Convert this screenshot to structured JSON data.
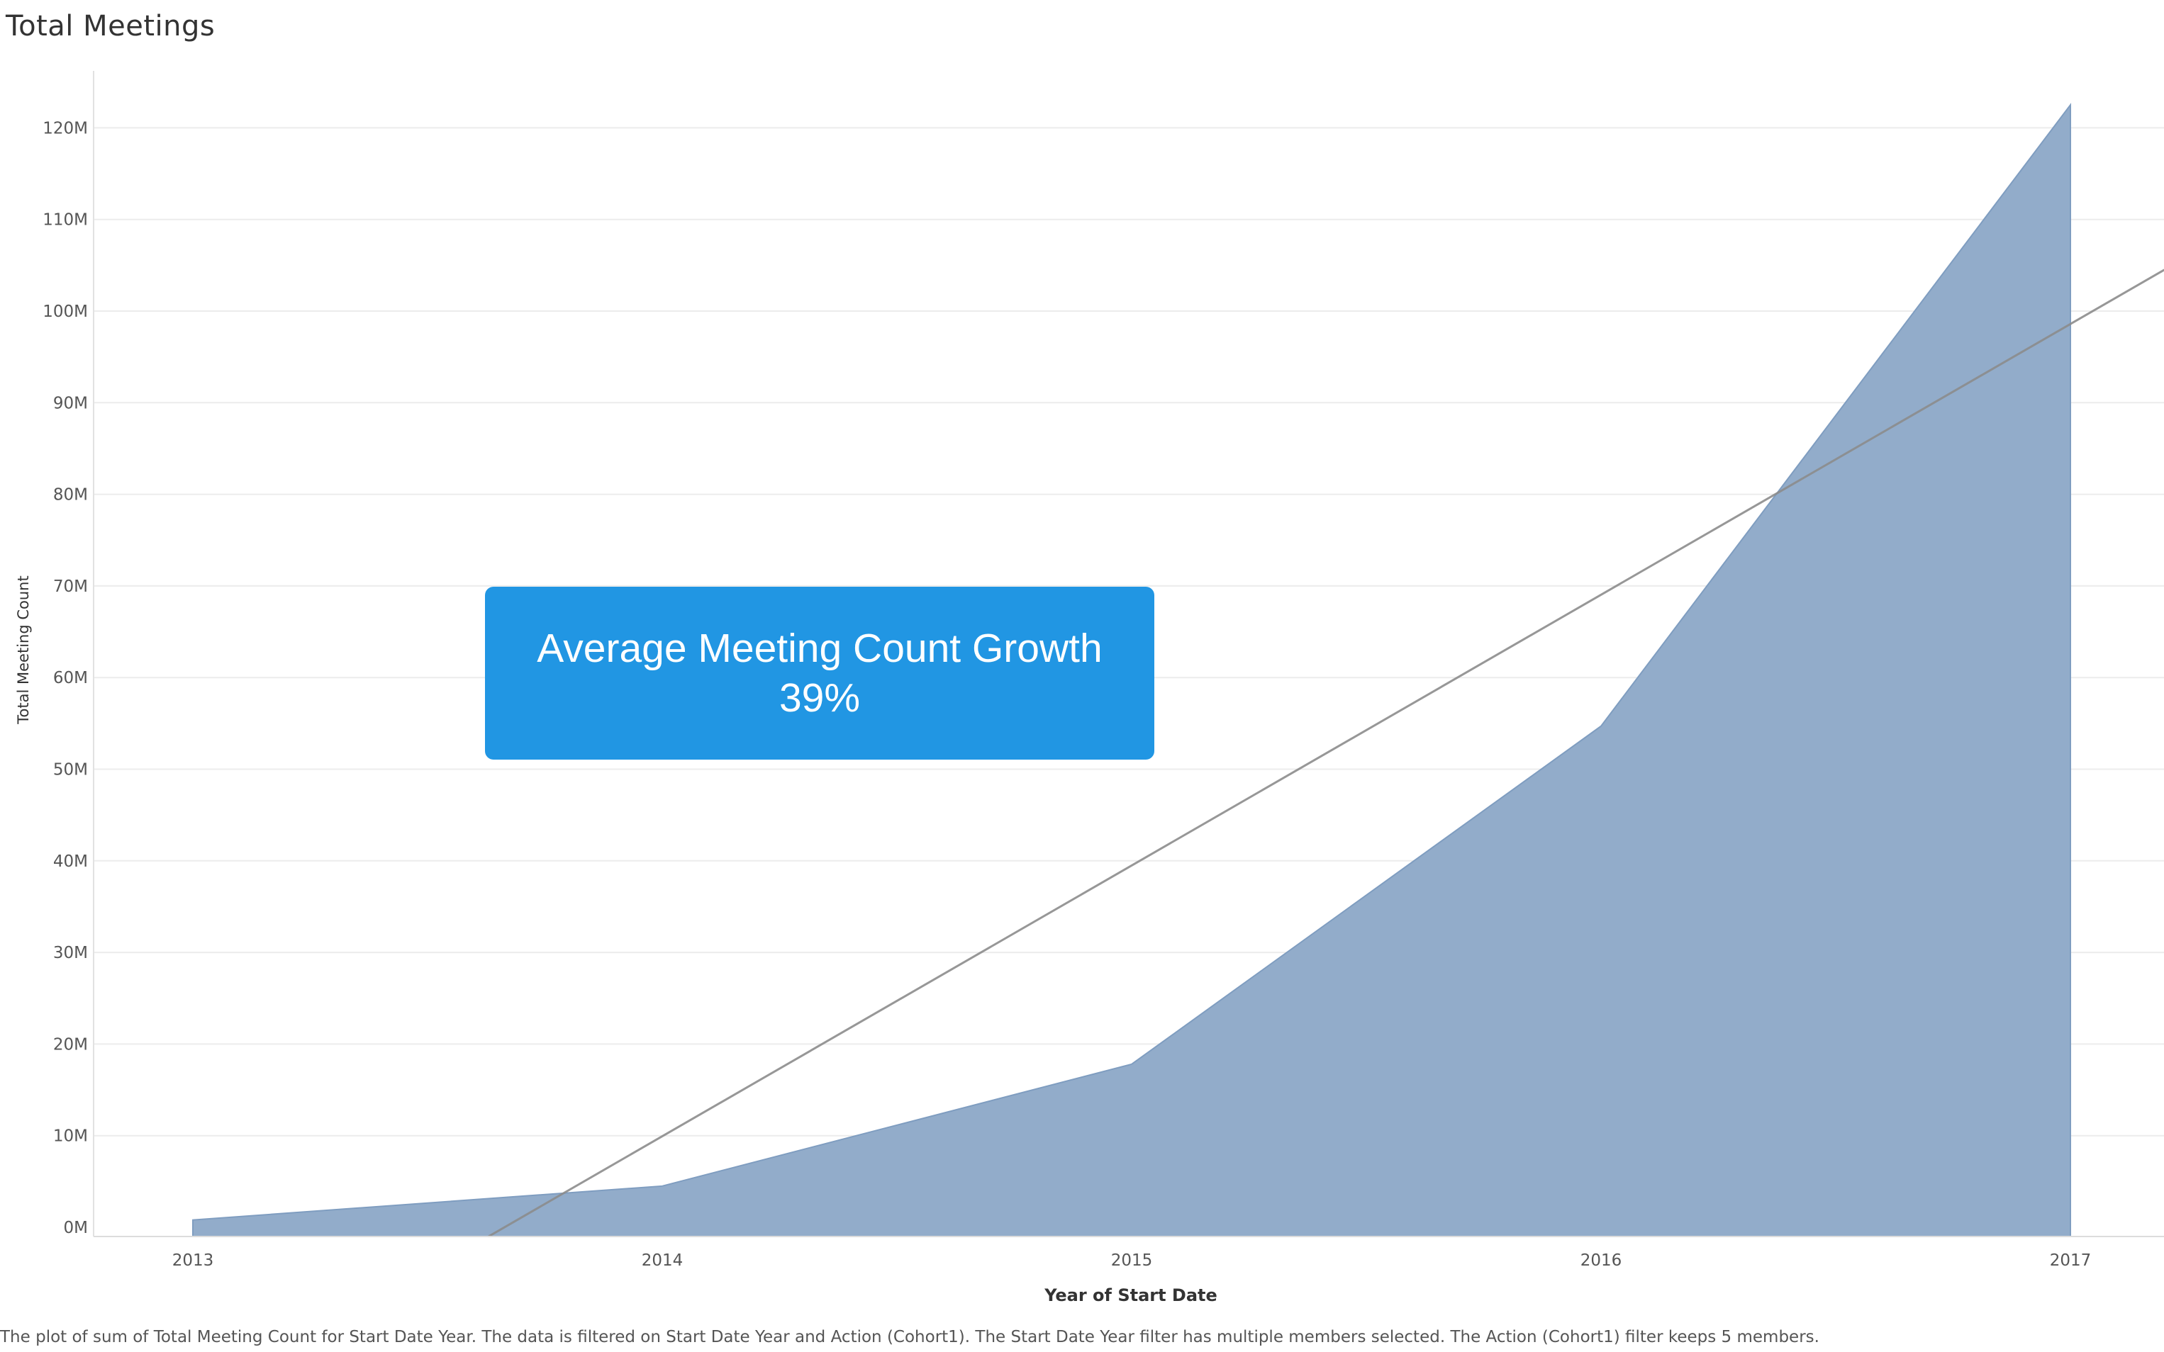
{
  "page": {
    "title": "Total Meetings",
    "footnote": "The plot of sum of Total Meeting Count for Start Date Year.  The data is filtered on Start Date Year and Action (Cohort1). The Start Date Year filter has multiple members selected. The Action (Cohort1) filter keeps 5 members."
  },
  "callout": {
    "line1": "Average Meeting Count Growth",
    "line2": "39%",
    "color": "#2196e3"
  },
  "chart_data": {
    "type": "area",
    "xlabel": "Year of Start Date",
    "ylabel": "Total Meeting Count",
    "categories": [
      "2013",
      "2014",
      "2015",
      "2016",
      "2017"
    ],
    "y_ticks": [
      "0M",
      "10M",
      "20M",
      "30M",
      "40M",
      "50M",
      "60M",
      "70M",
      "80M",
      "90M",
      "100M",
      "110M",
      "120M"
    ],
    "ylim": [
      -1000000,
      122000000
    ],
    "grid": true,
    "series": [
      {
        "values": [
          800000,
          4500000,
          17800000,
          54700000,
          122500000
        ],
        "color": "#8ea9c8"
      }
    ],
    "trend_line": {
      "points": [
        {
          "x": 2013.63,
          "y": -1000000
        },
        {
          "x": 2017.2,
          "y": 104500000
        }
      ],
      "color": "#8c8c8c"
    }
  }
}
